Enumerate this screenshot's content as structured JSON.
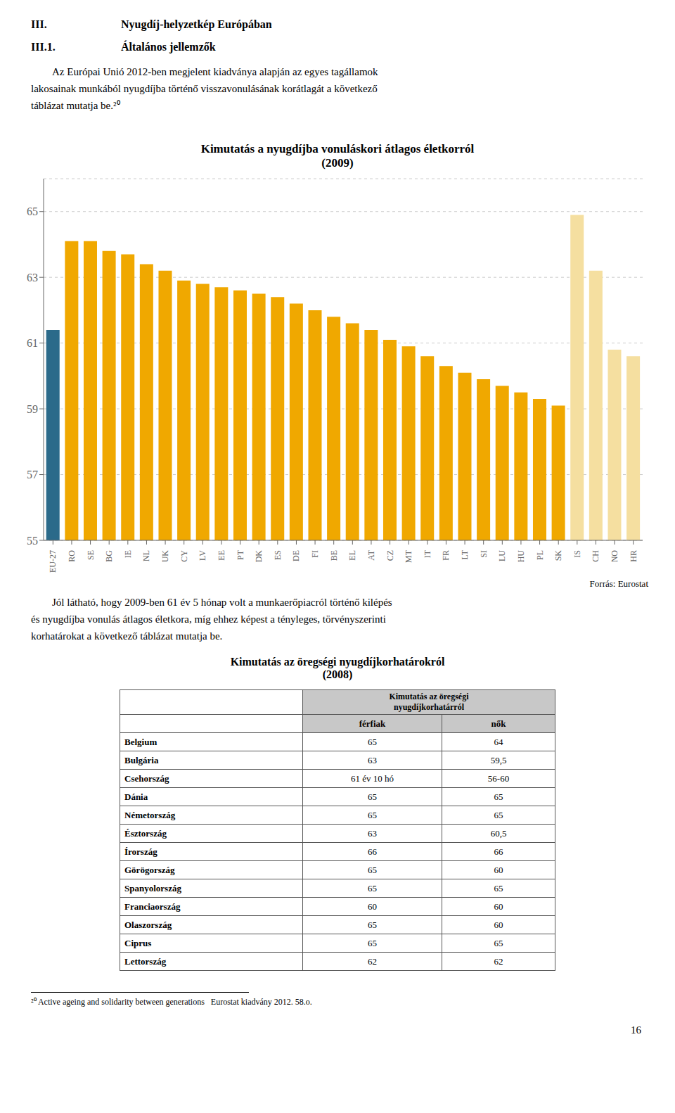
{
  "chart_data": {
    "type": "bar",
    "title": "Kimutatás a nyugdíjba vonuláskori átlagos életkorról",
    "subtitle": "(2009)",
    "categories": [
      "EU-27",
      "RO",
      "SE",
      "BG",
      "IE",
      "NL",
      "UK",
      "CY",
      "LV",
      "EE",
      "PT",
      "DK",
      "ES",
      "DE",
      "FI",
      "BE",
      "EL",
      "AT",
      "CZ",
      "MT",
      "IT",
      "FR",
      "LT",
      "SI",
      "LU",
      "HU",
      "PL",
      "SK",
      "IS",
      "CH",
      "NO",
      "HR"
    ],
    "values": [
      61.4,
      64.1,
      64.1,
      63.8,
      63.7,
      63.4,
      63.2,
      62.9,
      62.8,
      62.7,
      62.6,
      62.5,
      62.4,
      62.2,
      62.0,
      61.8,
      61.6,
      61.4,
      61.1,
      60.9,
      60.6,
      60.3,
      60.1,
      59.9,
      59.7,
      59.5,
      59.3,
      59.1,
      64.9,
      63.2,
      60.8,
      60.6
    ],
    "colors": [
      "#2b6a8a",
      "#f0a800",
      "#f0a800",
      "#f0a800",
      "#f0a800",
      "#f0a800",
      "#f0a800",
      "#f0a800",
      "#f0a800",
      "#f0a800",
      "#f0a800",
      "#f0a800",
      "#f0a800",
      "#f0a800",
      "#f0a800",
      "#f0a800",
      "#f0a800",
      "#f0a800",
      "#f0a800",
      "#f0a800",
      "#f0a800",
      "#f0a800",
      "#f0a800",
      "#f0a800",
      "#f0a800",
      "#f0a800",
      "#f0a800",
      "#f0a800",
      "#f5dfa0",
      "#f5dfa0",
      "#f5dfa0",
      "#f5dfa0"
    ],
    "ylim": [
      55,
      66
    ],
    "yticks": [
      55,
      57,
      59,
      61,
      63,
      65
    ],
    "grid": true,
    "annotations": [
      "Forrás: Eurostat"
    ]
  },
  "headings": [
    [
      "III.",
      "Nyugdíj-helyzetkép Európában"
    ],
    [
      "III.1.",
      "Általános jellemzők"
    ]
  ],
  "paragraphs": [
    [
      "Az Európai Unió 2012-ben megjelent kiadványa alapján az egyes tagállamok",
      "lakosainak munkából nyugdíjba történő visszavonulásának korátlagát a következő",
      "táblázat mutatja be.²⁰"
    ],
    [
      "Jól látható, hogy 2009-ben 61 év 5 hónap volt a munkaerőpiacról történő kilépés",
      "és nyugdíjba vonulás átlagos életkora, míg ehhez képest a tényleges, törvényszerinti",
      "korhatárokat a következő táblázat mutatja be."
    ]
  ],
  "table": {
    "title": "Kimutatás az öregségi nyugdíjkorhatárokról",
    "subtitle": "(2008)",
    "header": [
      "Kimutatás az öregségi",
      "nyugdíjkorhatárról"
    ],
    "columns": [
      "férfiak",
      "nők"
    ],
    "rows": [
      [
        "Belgium",
        "65",
        "64"
      ],
      [
        "Bulgária",
        "63",
        "59,5"
      ],
      [
        "Csehország",
        "61 év 10 hó",
        "56-60"
      ],
      [
        "Dánia",
        "65",
        "65"
      ],
      [
        "Németország",
        "65",
        "65"
      ],
      [
        "Észtország",
        "63",
        "60,5"
      ],
      [
        "Írország",
        "66",
        "66"
      ],
      [
        "Görögország",
        "65",
        "60"
      ],
      [
        "Spanyolország",
        "65",
        "65"
      ],
      [
        "Franciaország",
        "60",
        "60"
      ],
      [
        "Olaszország",
        "65",
        "60"
      ],
      [
        "Ciprus",
        "65",
        "65"
      ],
      [
        "Lettország",
        "62",
        "62"
      ]
    ]
  },
  "footnote": "²⁰ Active ageing and solidarity between generations   Eurostat kiadvány 2012. 58.o.",
  "page_number": "16"
}
